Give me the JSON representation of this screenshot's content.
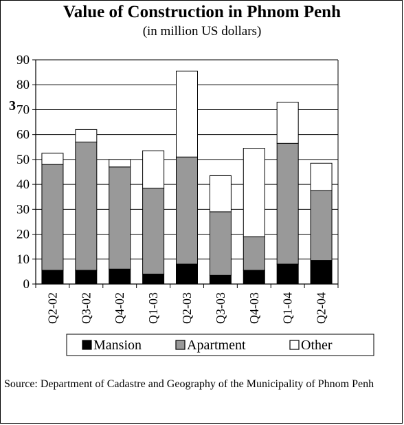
{
  "chart_data": {
    "type": "bar",
    "stacked": true,
    "title": "Value of Construction in Phnom Penh",
    "subtitle": "(in million US dollars)",
    "xlabel": "",
    "ylabel": "",
    "ylim": [
      0,
      90
    ],
    "yticks": [
      0,
      10,
      20,
      30,
      40,
      50,
      60,
      70,
      80,
      90
    ],
    "grid": true,
    "legend_position": "bottom",
    "categories": [
      "Q2-02",
      "Q3-02",
      "Q4-02",
      "Q1-03",
      "Q2-03",
      "Q3-03",
      "Q4-03",
      "Q1-04",
      "Q2-04"
    ],
    "series": [
      {
        "name": "Mansion",
        "color": "#000000",
        "values": [
          5.5,
          5.5,
          6,
          4,
          8,
          3.5,
          5.5,
          8,
          9.5
        ]
      },
      {
        "name": "Apartment",
        "color": "#999999",
        "values": [
          42.5,
          51.5,
          41,
          34.5,
          43,
          25.5,
          13.5,
          48.5,
          28
        ]
      },
      {
        "name": "Other",
        "color": "#ffffff",
        "values": [
          4.5,
          5,
          3,
          15,
          34.5,
          14.5,
          35.5,
          16.5,
          11
        ]
      }
    ]
  },
  "stray_mark": "3",
  "source": "Source: Department of Cadastre and Geography of the Municipality of Phnom Penh"
}
